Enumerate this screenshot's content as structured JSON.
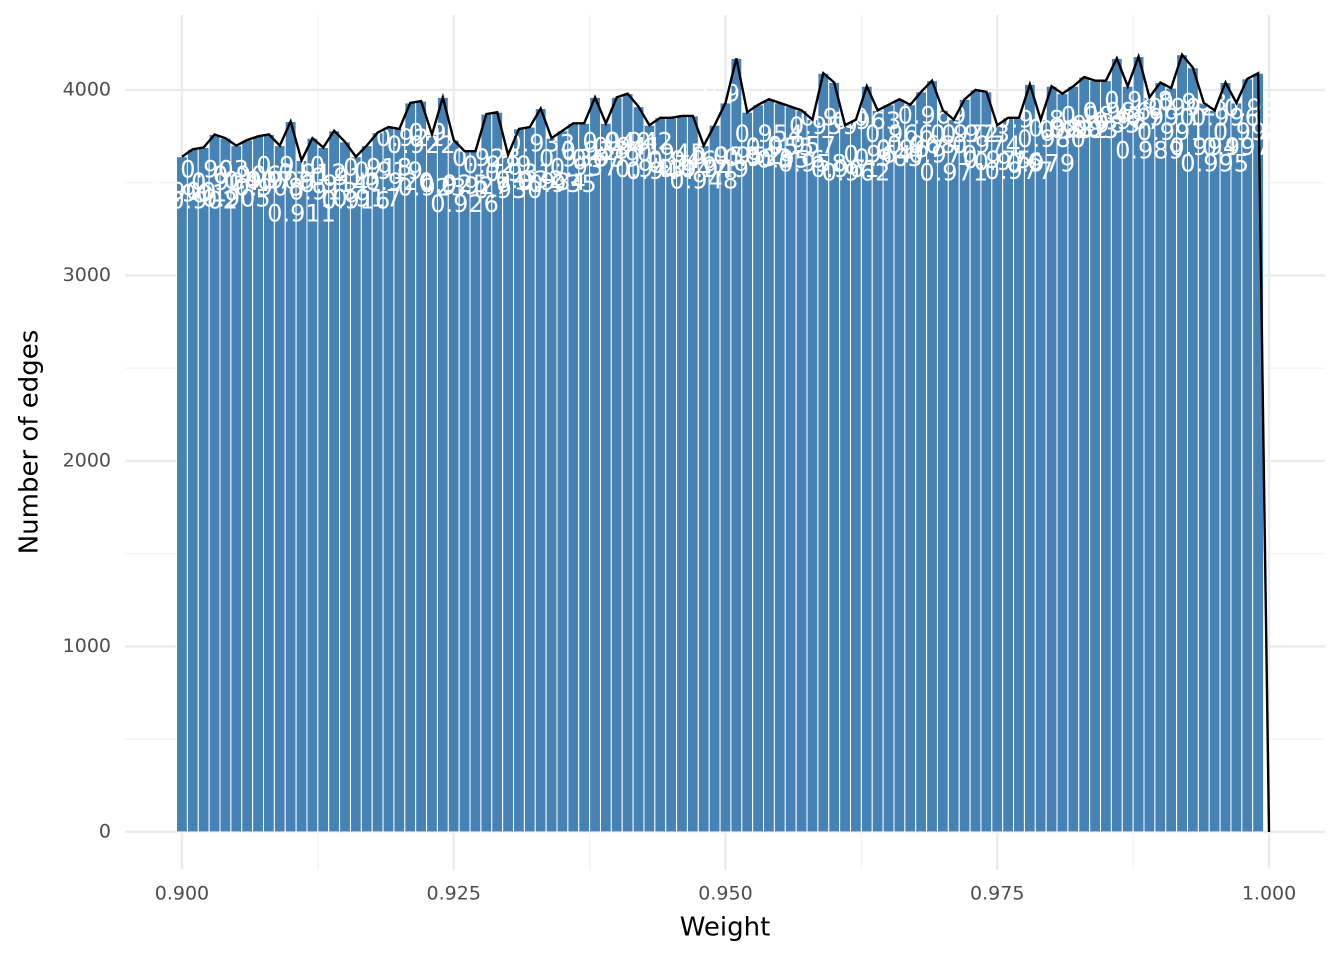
{
  "chart_data": {
    "type": "histogram",
    "x_label": "Weight",
    "y_label": "Number of edges",
    "color": "#4682b4",
    "line_color": "#000000",
    "grid": true,
    "xlim": [
      0.89476,
      1.00515
    ],
    "ylim": [
      -205,
      4404
    ],
    "xticks": [
      {
        "value": 0.9,
        "label": "0.900"
      },
      {
        "value": 0.925,
        "label": "0.925"
      },
      {
        "value": 0.95,
        "label": "0.950"
      },
      {
        "value": 0.975,
        "label": "0.975"
      },
      {
        "value": 1.0,
        "label": "1.000"
      }
    ],
    "xminor": [
      0.9125,
      0.9375,
      0.9625,
      0.9875
    ],
    "yticks": [
      0,
      1000,
      2000,
      3000,
      4000
    ],
    "yminor": [
      500,
      1500,
      2500,
      3500
    ],
    "bins": [
      0.8995,
      0.9005,
      0.9015,
      0.9025,
      0.9035,
      0.9045,
      0.9055,
      0.9065,
      0.9075,
      0.9085,
      0.9095,
      0.9105,
      0.9115,
      0.9125,
      0.9135,
      0.9145,
      0.9155,
      0.9165,
      0.9175,
      0.9185,
      0.9195,
      0.9205,
      0.9215,
      0.9225,
      0.9235,
      0.9245,
      0.9255,
      0.9265,
      0.9275,
      0.9285,
      0.9295,
      0.9305,
      0.9315,
      0.9325,
      0.9335,
      0.9345,
      0.9355,
      0.9365,
      0.9375,
      0.9385,
      0.9395,
      0.9405,
      0.9415,
      0.9425,
      0.9435,
      0.9445,
      0.9455,
      0.9465,
      0.9475,
      0.9485,
      0.9495,
      0.9505,
      0.9515,
      0.9525,
      0.9535,
      0.9545,
      0.9555,
      0.9565,
      0.9575,
      0.9585,
      0.9595,
      0.9605,
      0.9615,
      0.9625,
      0.9635,
      0.9645,
      0.9655,
      0.9665,
      0.9675,
      0.9685,
      0.9695,
      0.9705,
      0.9715,
      0.9725,
      0.9735,
      0.9745,
      0.9755,
      0.9765,
      0.9775,
      0.9785,
      0.9795,
      0.9805,
      0.9815,
      0.9825,
      0.9835,
      0.9845,
      0.9855,
      0.9865,
      0.9875,
      0.9885,
      0.9895,
      0.9905,
      0.9915,
      0.9925,
      0.9935,
      0.9945,
      0.9955,
      0.9965,
      0.9975,
      0.9985,
      0.9995,
      1.0005
    ],
    "values": [
      3640,
      3680,
      3690,
      3760,
      3740,
      3700,
      3730,
      3750,
      3760,
      3700,
      3830,
      3620,
      3740,
      3690,
      3780,
      3720,
      3640,
      3700,
      3770,
      3800,
      3790,
      3930,
      3940,
      3760,
      3960,
      3730,
      3670,
      3670,
      3870,
      3880,
      3650,
      3790,
      3800,
      3900,
      3740,
      3780,
      3820,
      3820,
      3960,
      3820,
      3960,
      3980,
      3910,
      3810,
      3850,
      3850,
      3860,
      3860,
      3700,
      3810,
      3930,
      4170,
      3880,
      3920,
      3950,
      3930,
      3910,
      3890,
      3840,
      4090,
      4040,
      3810,
      3840,
      4020,
      3890,
      3920,
      3950,
      3920,
      3990,
      4050,
      3890,
      3840,
      3950,
      4000,
      3990,
      3810,
      3850,
      3850,
      4030,
      3840,
      4020,
      3980,
      4020,
      4070,
      4050,
      4050,
      4170,
      4020,
      4180,
      3960,
      4040,
      4010,
      4190,
      4120,
      3930,
      3890,
      4040,
      3930,
      4060,
      4090,
      0
    ],
    "bin_labels": [
      "0.900",
      "0.901",
      "0.902",
      "0.903",
      "0.904",
      "0.905",
      "0.906",
      "0.907",
      "0.908",
      "0.909",
      "0.910",
      "0.911",
      "0.912",
      "0.913",
      "0.914",
      "0.915",
      "0.916",
      "0.917",
      "0.918",
      "0.919",
      "0.920",
      "0.921",
      "0.922",
      "0.923",
      "0.924",
      "0.925",
      "0.926",
      "0.927",
      "0.928",
      "0.929",
      "0.930",
      "0.931",
      "0.932",
      "0.933",
      "0.934",
      "0.935",
      "0.936",
      "0.937",
      "0.938",
      "0.939",
      "0.940",
      "0.941",
      "0.942",
      "0.943",
      "0.944",
      "0.945",
      "0.946",
      "0.947",
      "0.948",
      "0.949",
      "0.950",
      "0.951",
      "0.952",
      "0.953",
      "0.954",
      "0.955",
      "0.956",
      "0.957",
      "0.958",
      "0.959",
      "0.960",
      "0.961",
      "0.962",
      "0.963",
      "0.964",
      "0.965",
      "0.966",
      "0.967",
      "0.968",
      "0.969",
      "0.970",
      "0.971",
      "0.972",
      "0.973",
      "0.974",
      "0.975",
      "0.976",
      "0.977",
      "0.978",
      "0.979",
      "0.980",
      "0.981",
      "0.982",
      "0.983",
      "0.984",
      "0.985",
      "0.986",
      "0.987",
      "0.988",
      "0.989",
      "0.990",
      "0.991",
      "0.992",
      "0.993",
      "0.994",
      "0.995",
      "0.996",
      "0.997",
      "0.998",
      "0.999",
      "1.000"
    ]
  }
}
